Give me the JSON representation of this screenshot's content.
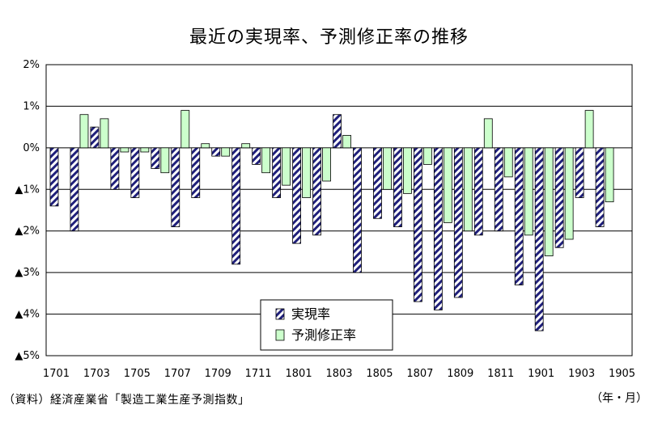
{
  "title": "最近の実現率、予測修正率の推移",
  "source": "（資料）経済産業省「製造工業生産予測指数」",
  "unit": "（年・月）",
  "chart_data": {
    "type": "bar",
    "categories": [
      "1701",
      "1702",
      "1703",
      "1704",
      "1705",
      "1706",
      "1707",
      "1708",
      "1709",
      "1710",
      "1711",
      "1712",
      "1801",
      "1802",
      "1803",
      "1804",
      "1805",
      "1806",
      "1807",
      "1808",
      "1809",
      "1810",
      "1811",
      "1812",
      "1901",
      "1902",
      "1903",
      "1904"
    ],
    "x_tick_labels": [
      "1701",
      "1703",
      "1705",
      "1707",
      "1709",
      "1711",
      "1801",
      "1803",
      "1805",
      "1807",
      "1809",
      "1811",
      "1901",
      "1903",
      "1905"
    ],
    "y_tick_labels": [
      "2%",
      "1%",
      "0%",
      "▲1%",
      "▲2%",
      "▲3%",
      "▲4%",
      "▲5%"
    ],
    "ylim": [
      -5,
      2
    ],
    "y_ticks": [
      2,
      1,
      0,
      -1,
      -2,
      -3,
      -4,
      -5
    ],
    "grid": true,
    "legend_position": "bottom-center",
    "series": [
      {
        "name": "実現率",
        "color": "#1f1f7a",
        "pattern": "diagonal-hatch",
        "values": [
          -1.4,
          -2.0,
          0.5,
          -1.0,
          -1.2,
          -0.5,
          -1.9,
          -1.2,
          -0.2,
          -2.8,
          -0.4,
          -1.2,
          -2.3,
          -2.1,
          0.8,
          -3.0,
          -1.7,
          -1.9,
          -3.7,
          -3.9,
          -3.6,
          -2.1,
          -2.0,
          -3.3,
          -4.4,
          -2.4,
          -1.2,
          -1.9
        ]
      },
      {
        "name": "予測修正率",
        "color": "#ccffcc",
        "pattern": "solid",
        "values": [
          null,
          0.8,
          0.7,
          -0.1,
          -0.1,
          -0.6,
          0.9,
          0.1,
          -0.2,
          0.1,
          -0.6,
          -0.9,
          -1.2,
          -0.8,
          0.3,
          null,
          -1.0,
          -1.1,
          -0.4,
          -1.8,
          -2.0,
          0.7,
          -0.7,
          -2.1,
          -2.6,
          -2.2,
          0.9,
          -1.3
        ]
      }
    ]
  }
}
